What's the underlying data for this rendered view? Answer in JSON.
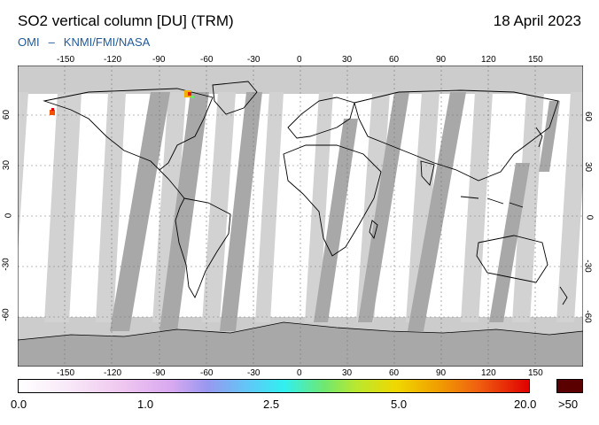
{
  "header": {
    "title": "SO2 vertical column [DU] (TRM)",
    "date": "18 April 2023",
    "credit_left": "OMI",
    "credit_sep": "–",
    "credit_right": "KNMI/FMI/NASA"
  },
  "map": {
    "lon_ticks": [
      "-150",
      "-120",
      "-90",
      "-60",
      "-30",
      "0",
      "30",
      "60",
      "90",
      "120",
      "150"
    ],
    "lat_ticks": [
      "60",
      "30",
      "0",
      "-30",
      "-60"
    ],
    "colors": {
      "no_data": "#cccccc",
      "swath_gap": "#a8a8a8",
      "valid": "#ffffff",
      "coast": "#000000"
    }
  },
  "colorbar": {
    "labels": [
      "0.0",
      "1.0",
      "2.5",
      "5.0",
      "20.0",
      ">50"
    ],
    "max_color": "#5a0000"
  }
}
